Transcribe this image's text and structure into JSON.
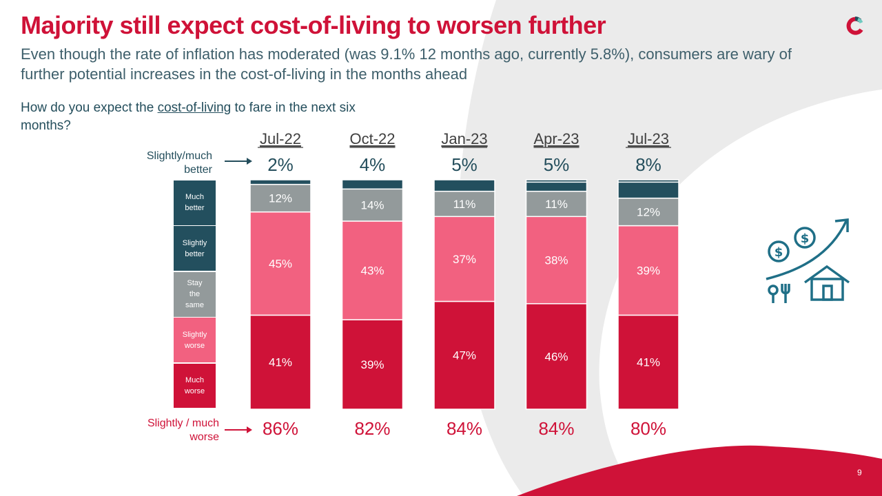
{
  "title": "Majority still expect cost-of-living to worsen further",
  "subtitle": "Even though the rate of inflation has moderated (was 9.1% 12 months ago, currently 5.8%), consumers are wary of further potential increases in the cost-of-living in the months ahead",
  "question": {
    "before": "How do you expect the ",
    "underlined": "cost-of-living",
    "after": " to fare in the next six months?"
  },
  "side_labels": {
    "better": "Slightly/much better",
    "worse": "Slightly / much worse"
  },
  "page_number": "9",
  "colors": {
    "brand_red": "#cf1238",
    "much_worse": "#cf1238",
    "slightly_worse": "#f26180",
    "stay_same": "#939a9b",
    "better": "#234f5e",
    "text_teal": "#244e5c",
    "bg_grey": "#ebebeb"
  },
  "chart_data": {
    "type": "bar",
    "stacked": true,
    "title": "How do you expect the cost-of-living to fare in the next six months?",
    "xlabel": "",
    "ylabel": "",
    "ylim": [
      0,
      100
    ],
    "categories": [
      "Jul-22",
      "Oct-22",
      "Jan-23",
      "Apr-23",
      "Jul-23"
    ],
    "series": [
      {
        "name": "Much worse",
        "key": "much_worse",
        "values": [
          41,
          39,
          47,
          46,
          41
        ],
        "show_labels": true
      },
      {
        "name": "Slightly worse",
        "key": "slightly_worse",
        "values": [
          45,
          43,
          37,
          38,
          39
        ],
        "show_labels": true
      },
      {
        "name": "Stay the same",
        "key": "stay_same",
        "values": [
          12,
          14,
          11,
          11,
          12
        ],
        "show_labels": true
      },
      {
        "name": "Slightly better",
        "key": "better",
        "values": [
          2,
          4,
          5,
          4,
          7
        ],
        "show_labels": false
      },
      {
        "name": "Much better",
        "key": "better",
        "values": [
          0,
          0,
          0,
          1,
          1
        ],
        "show_labels": false
      }
    ],
    "totals_better": [
      "2%",
      "4%",
      "5%",
      "5%",
      "8%"
    ],
    "totals_worse": [
      "86%",
      "82%",
      "84%",
      "84%",
      "80%"
    ],
    "legend": [
      {
        "label": "Much better",
        "key": "better"
      },
      {
        "label": "Slightly better",
        "key": "better"
      },
      {
        "label": "Stay the same",
        "key": "stay_same"
      },
      {
        "label": "Slightly worse",
        "key": "slightly_worse"
      },
      {
        "label": "Much worse",
        "key": "much_worse"
      }
    ],
    "legend_placement": "left"
  }
}
